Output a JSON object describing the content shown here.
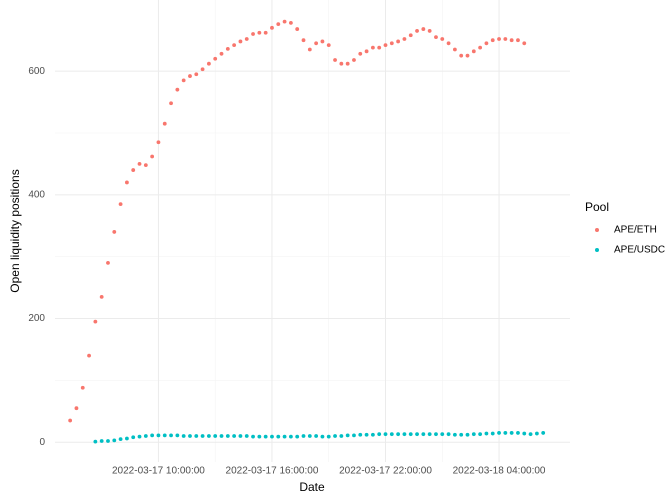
{
  "chart_data": {
    "type": "scatter",
    "x_label": "Date",
    "y_label": "Open liquidity positions",
    "legend_title": "Pool",
    "legend": "right",
    "grid": true,
    "x": [
      "2022-03-17 05:20:00",
      "2022-03-17 05:40:00",
      "2022-03-17 06:00:00",
      "2022-03-17 06:20:00",
      "2022-03-17 06:40:00",
      "2022-03-17 07:00:00",
      "2022-03-17 07:20:00",
      "2022-03-17 07:40:00",
      "2022-03-17 08:00:00",
      "2022-03-17 08:20:00",
      "2022-03-17 08:40:00",
      "2022-03-17 09:00:00",
      "2022-03-17 09:20:00",
      "2022-03-17 09:40:00",
      "2022-03-17 10:00:00",
      "2022-03-17 10:20:00",
      "2022-03-17 10:40:00",
      "2022-03-17 11:00:00",
      "2022-03-17 11:20:00",
      "2022-03-17 11:40:00",
      "2022-03-17 12:00:00",
      "2022-03-17 12:20:00",
      "2022-03-17 12:40:00",
      "2022-03-17 13:00:00",
      "2022-03-17 13:20:00",
      "2022-03-17 13:40:00",
      "2022-03-17 14:00:00",
      "2022-03-17 14:20:00",
      "2022-03-17 14:40:00",
      "2022-03-17 15:00:00",
      "2022-03-17 15:20:00",
      "2022-03-17 15:40:00",
      "2022-03-17 16:00:00",
      "2022-03-17 16:20:00",
      "2022-03-17 16:40:00",
      "2022-03-17 17:00:00",
      "2022-03-17 17:20:00",
      "2022-03-17 17:40:00",
      "2022-03-17 18:00:00",
      "2022-03-17 18:20:00",
      "2022-03-17 18:40:00",
      "2022-03-17 19:00:00",
      "2022-03-17 19:20:00",
      "2022-03-17 19:40:00",
      "2022-03-17 20:00:00",
      "2022-03-17 20:20:00",
      "2022-03-17 20:40:00",
      "2022-03-17 21:00:00",
      "2022-03-17 21:20:00",
      "2022-03-17 21:40:00",
      "2022-03-17 22:00:00",
      "2022-03-17 22:20:00",
      "2022-03-17 22:40:00",
      "2022-03-17 23:00:00",
      "2022-03-17 23:20:00",
      "2022-03-17 23:40:00",
      "2022-03-18 00:00:00",
      "2022-03-18 00:20:00",
      "2022-03-18 00:40:00",
      "2022-03-18 01:00:00",
      "2022-03-18 01:20:00",
      "2022-03-18 01:40:00",
      "2022-03-18 02:00:00",
      "2022-03-18 02:20:00",
      "2022-03-18 02:40:00",
      "2022-03-18 03:00:00",
      "2022-03-18 03:20:00",
      "2022-03-18 03:40:00",
      "2022-03-18 04:00:00",
      "2022-03-18 04:20:00",
      "2022-03-18 04:40:00",
      "2022-03-18 05:00:00",
      "2022-03-18 05:20:00",
      "2022-03-18 05:40:00",
      "2022-03-18 06:00:00",
      "2022-03-18 06:20:00"
    ],
    "series": [
      {
        "name": "APE/ETH",
        "color": "#F8766D",
        "values": [
          35,
          55,
          88,
          140,
          195,
          235,
          290,
          340,
          385,
          420,
          440,
          450,
          448,
          462,
          485,
          515,
          548,
          570,
          585,
          592,
          595,
          603,
          612,
          620,
          628,
          636,
          642,
          648,
          652,
          660,
          662,
          662,
          670,
          676,
          680,
          678,
          668,
          650,
          635,
          645,
          648,
          642,
          618,
          612,
          612,
          618,
          628,
          632,
          638,
          638,
          642,
          645,
          648,
          652,
          658,
          665,
          668,
          665,
          655,
          652,
          645,
          635,
          625,
          625,
          632,
          638,
          645,
          650,
          652,
          652,
          650,
          650,
          645,
          null,
          null,
          null
        ]
      },
      {
        "name": "APE/USDC",
        "color": "#00BFC4",
        "values": [
          null,
          null,
          null,
          null,
          1,
          2,
          2,
          3,
          5,
          6,
          8,
          9,
          10,
          11,
          11,
          11,
          11,
          11,
          10,
          10,
          10,
          10,
          10,
          10,
          10,
          10,
          10,
          10,
          10,
          9,
          9,
          9,
          9,
          9,
          9,
          9,
          9,
          10,
          10,
          10,
          9,
          9,
          10,
          10,
          11,
          11,
          12,
          12,
          12,
          13,
          13,
          13,
          13,
          13,
          13,
          13,
          13,
          13,
          13,
          13,
          13,
          12,
          12,
          12,
          13,
          13,
          14,
          14,
          15,
          15,
          15,
          15,
          14,
          13,
          14,
          15
        ]
      }
    ],
    "xlim": [
      "2022-03-17 04:32:00",
      "2022-03-18 07:45:00"
    ],
    "xticks": [
      "2022-03-17 10:00:00",
      "2022-03-17 16:00:00",
      "2022-03-17 22:00:00",
      "2022-03-18 04:00:00"
    ],
    "ylim": [
      -32,
      715
    ],
    "yticks": [
      0,
      200,
      400,
      600
    ]
  }
}
